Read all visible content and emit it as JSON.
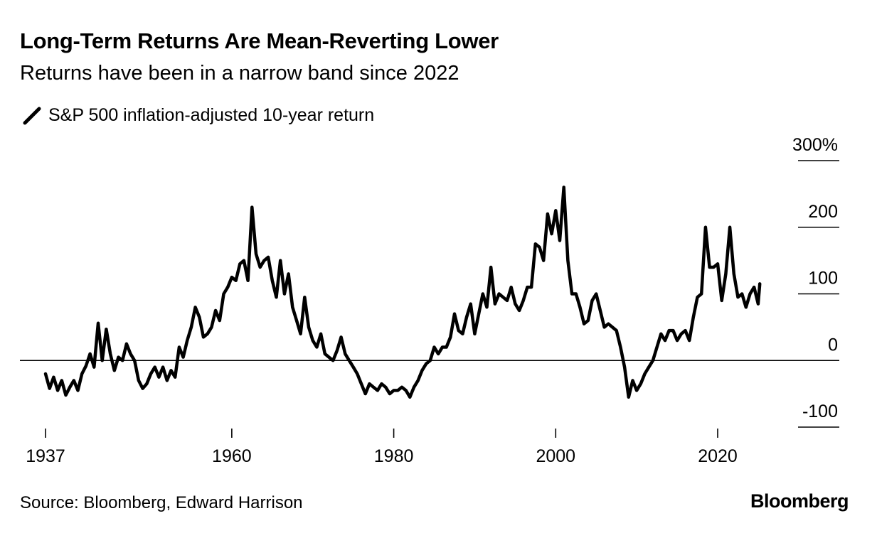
{
  "title": "Long-Term Returns Are Mean-Reverting Lower",
  "subtitle": "Returns have been in a narrow band since 2022",
  "source": "Source: Bloomberg, Edward Harrison",
  "brand": "Bloomberg",
  "legend_icon": "line-swatch-icon",
  "chart_data": {
    "type": "line",
    "title": "Long-Term Returns Are Mean-Reverting Lower",
    "subtitle": "Returns have been in a narrow band since 2022",
    "xlabel": "",
    "ylabel": "",
    "xlim": [
      1937,
      2025
    ],
    "ylim": [
      -100,
      300
    ],
    "x_ticks": [
      {
        "value": 1937,
        "label": "1937"
      },
      {
        "value": 1960,
        "label": "1960"
      },
      {
        "value": 1980,
        "label": "1980"
      },
      {
        "value": 2000,
        "label": "2000"
      },
      {
        "value": 2020,
        "label": "2020"
      }
    ],
    "y_ticks": [
      {
        "value": 300,
        "label": "300%"
      },
      {
        "value": 200,
        "label": "200"
      },
      {
        "value": 100,
        "label": "100"
      },
      {
        "value": 0,
        "label": "0"
      },
      {
        "value": -100,
        "label": "-100"
      }
    ],
    "zero_line": true,
    "grid": false,
    "legend_position": "top-left",
    "line_color": "#000000",
    "series": [
      {
        "name": "S&P 500 inflation-adjusted 10-year return",
        "points": [
          [
            1937.0,
            -20
          ],
          [
            1937.5,
            -42
          ],
          [
            1938.0,
            -25
          ],
          [
            1938.5,
            -45
          ],
          [
            1939.0,
            -30
          ],
          [
            1939.5,
            -52
          ],
          [
            1940.0,
            -40
          ],
          [
            1940.5,
            -30
          ],
          [
            1941.0,
            -45
          ],
          [
            1941.5,
            -20
          ],
          [
            1942.0,
            -8
          ],
          [
            1942.5,
            10
          ],
          [
            1943.0,
            -10
          ],
          [
            1943.5,
            56
          ],
          [
            1944.0,
            0
          ],
          [
            1944.5,
            47
          ],
          [
            1945.0,
            10
          ],
          [
            1945.5,
            -15
          ],
          [
            1946.0,
            5
          ],
          [
            1946.5,
            0
          ],
          [
            1947.0,
            25
          ],
          [
            1947.5,
            10
          ],
          [
            1948.0,
            0
          ],
          [
            1948.5,
            -30
          ],
          [
            1949.0,
            -42
          ],
          [
            1949.5,
            -35
          ],
          [
            1950.0,
            -20
          ],
          [
            1950.5,
            -10
          ],
          [
            1951.0,
            -25
          ],
          [
            1951.5,
            -10
          ],
          [
            1952.0,
            -30
          ],
          [
            1952.5,
            -15
          ],
          [
            1953.0,
            -25
          ],
          [
            1953.5,
            20
          ],
          [
            1954.0,
            5
          ],
          [
            1954.5,
            30
          ],
          [
            1955.0,
            50
          ],
          [
            1955.5,
            80
          ],
          [
            1956.0,
            65
          ],
          [
            1956.5,
            35
          ],
          [
            1957.0,
            40
          ],
          [
            1957.5,
            50
          ],
          [
            1958.0,
            75
          ],
          [
            1958.5,
            60
          ],
          [
            1959.0,
            100
          ],
          [
            1959.5,
            110
          ],
          [
            1960.0,
            125
          ],
          [
            1960.5,
            120
          ],
          [
            1961.0,
            145
          ],
          [
            1961.5,
            150
          ],
          [
            1962.0,
            120
          ],
          [
            1962.5,
            230
          ],
          [
            1963.0,
            160
          ],
          [
            1963.5,
            140
          ],
          [
            1964.0,
            150
          ],
          [
            1964.5,
            155
          ],
          [
            1965.0,
            120
          ],
          [
            1965.5,
            95
          ],
          [
            1966.0,
            150
          ],
          [
            1966.5,
            100
          ],
          [
            1967.0,
            130
          ],
          [
            1967.5,
            80
          ],
          [
            1968.0,
            60
          ],
          [
            1968.5,
            40
          ],
          [
            1969.0,
            95
          ],
          [
            1969.5,
            50
          ],
          [
            1970.0,
            30
          ],
          [
            1970.5,
            20
          ],
          [
            1971.0,
            40
          ],
          [
            1971.5,
            10
          ],
          [
            1972.0,
            5
          ],
          [
            1972.5,
            0
          ],
          [
            1973.0,
            15
          ],
          [
            1973.5,
            35
          ],
          [
            1974.0,
            10
          ],
          [
            1974.5,
            0
          ],
          [
            1975.0,
            -10
          ],
          [
            1975.5,
            -20
          ],
          [
            1976.0,
            -35
          ],
          [
            1976.5,
            -50
          ],
          [
            1977.0,
            -35
          ],
          [
            1977.5,
            -40
          ],
          [
            1978.0,
            -45
          ],
          [
            1978.5,
            -35
          ],
          [
            1979.0,
            -40
          ],
          [
            1979.5,
            -50
          ],
          [
            1980.0,
            -45
          ],
          [
            1980.5,
            -45
          ],
          [
            1981.0,
            -40
          ],
          [
            1981.5,
            -45
          ],
          [
            1982.0,
            -55
          ],
          [
            1982.5,
            -40
          ],
          [
            1983.0,
            -30
          ],
          [
            1983.5,
            -15
          ],
          [
            1984.0,
            -5
          ],
          [
            1984.5,
            0
          ],
          [
            1985.0,
            20
          ],
          [
            1985.5,
            10
          ],
          [
            1986.0,
            20
          ],
          [
            1986.5,
            20
          ],
          [
            1987.0,
            35
          ],
          [
            1987.5,
            70
          ],
          [
            1988.0,
            45
          ],
          [
            1988.5,
            40
          ],
          [
            1989.0,
            65
          ],
          [
            1989.5,
            85
          ],
          [
            1990.0,
            40
          ],
          [
            1990.5,
            70
          ],
          [
            1991.0,
            100
          ],
          [
            1991.5,
            80
          ],
          [
            1992.0,
            140
          ],
          [
            1992.5,
            85
          ],
          [
            1993.0,
            100
          ],
          [
            1993.5,
            95
          ],
          [
            1994.0,
            90
          ],
          [
            1994.5,
            110
          ],
          [
            1995.0,
            85
          ],
          [
            1995.5,
            75
          ],
          [
            1996.0,
            90
          ],
          [
            1996.5,
            110
          ],
          [
            1997.0,
            110
          ],
          [
            1997.5,
            175
          ],
          [
            1998.0,
            170
          ],
          [
            1998.5,
            150
          ],
          [
            1999.0,
            220
          ],
          [
            1999.5,
            190
          ],
          [
            2000.0,
            225
          ],
          [
            2000.5,
            180
          ],
          [
            2001.0,
            260
          ],
          [
            2001.5,
            150
          ],
          [
            2002.0,
            100
          ],
          [
            2002.5,
            100
          ],
          [
            2003.0,
            80
          ],
          [
            2003.5,
            55
          ],
          [
            2004.0,
            60
          ],
          [
            2004.5,
            90
          ],
          [
            2005.0,
            100
          ],
          [
            2005.5,
            75
          ],
          [
            2006.0,
            50
          ],
          [
            2006.5,
            55
          ],
          [
            2007.0,
            50
          ],
          [
            2007.5,
            45
          ],
          [
            2008.0,
            20
          ],
          [
            2008.5,
            -10
          ],
          [
            2009.0,
            -55
          ],
          [
            2009.5,
            -30
          ],
          [
            2010.0,
            -45
          ],
          [
            2010.5,
            -35
          ],
          [
            2011.0,
            -20
          ],
          [
            2011.5,
            -10
          ],
          [
            2012.0,
            0
          ],
          [
            2012.5,
            20
          ],
          [
            2013.0,
            40
          ],
          [
            2013.5,
            30
          ],
          [
            2014.0,
            45
          ],
          [
            2014.5,
            45
          ],
          [
            2015.0,
            30
          ],
          [
            2015.5,
            40
          ],
          [
            2016.0,
            45
          ],
          [
            2016.5,
            30
          ],
          [
            2017.0,
            65
          ],
          [
            2017.5,
            95
          ],
          [
            2018.0,
            100
          ],
          [
            2018.5,
            200
          ],
          [
            2019.0,
            140
          ],
          [
            2019.5,
            140
          ],
          [
            2020.0,
            145
          ],
          [
            2020.5,
            90
          ],
          [
            2021.0,
            130
          ],
          [
            2021.5,
            200
          ],
          [
            2022.0,
            130
          ],
          [
            2022.5,
            95
          ],
          [
            2023.0,
            100
          ],
          [
            2023.5,
            80
          ],
          [
            2024.0,
            100
          ],
          [
            2024.5,
            110
          ],
          [
            2025.0,
            85
          ],
          [
            2025.2,
            115
          ]
        ]
      }
    ]
  }
}
